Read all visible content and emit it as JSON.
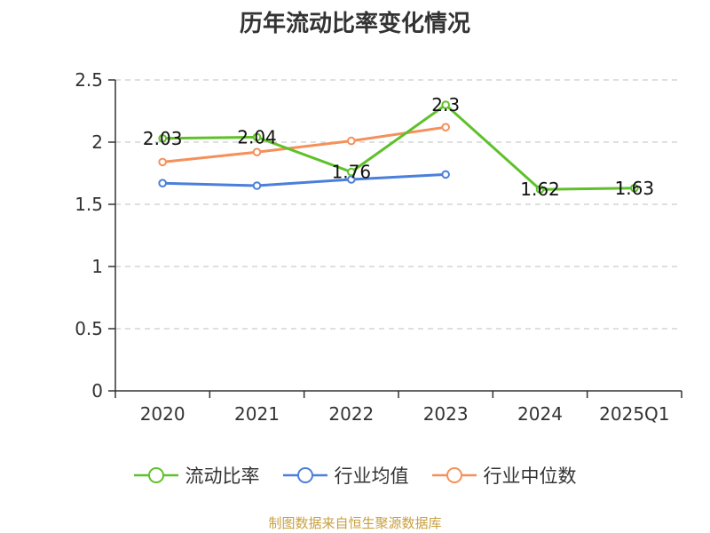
{
  "chart_data": {
    "type": "line",
    "title": "历年流动比率变化情况",
    "categories": [
      "2020",
      "2021",
      "2022",
      "2023",
      "2024",
      "2025Q1"
    ],
    "ylim": [
      0,
      2.5
    ],
    "yticks": [
      "0",
      "0.5",
      "1",
      "1.5",
      "2",
      "2.5"
    ],
    "grid": true,
    "legend_position": "bottom",
    "series": [
      {
        "name": "流动比率",
        "color": "#5fc12a",
        "values": [
          2.03,
          2.04,
          1.76,
          2.3,
          1.62,
          1.63
        ],
        "labels": [
          "2.03",
          "2.04",
          "1.76",
          "2.3",
          "1.62",
          "1.63"
        ]
      },
      {
        "name": "行业均值",
        "color": "#4a7fdb",
        "values": [
          1.67,
          1.65,
          1.7,
          1.74,
          null,
          null
        ]
      },
      {
        "name": "行业中位数",
        "color": "#f5905a",
        "values": [
          1.84,
          1.92,
          2.01,
          2.12,
          null,
          null
        ]
      }
    ]
  },
  "source": "制图数据来自恒生聚源数据库"
}
